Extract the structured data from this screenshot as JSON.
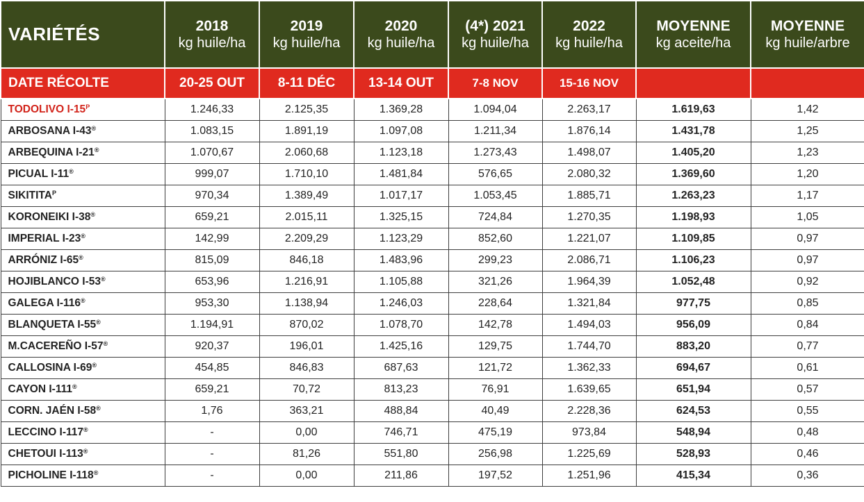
{
  "header": {
    "varietes_label": "VARIÉTÉS",
    "columns": [
      {
        "year": "2018",
        "unit": "kg huile/ha"
      },
      {
        "year": "2019",
        "unit": "kg huile/ha"
      },
      {
        "year": "2020",
        "unit": "kg huile/ha"
      },
      {
        "year": "(4*) 2021",
        "unit": "kg huile/ha"
      },
      {
        "year": "2022",
        "unit": "kg huile/ha"
      },
      {
        "year": "MOYENNE",
        "unit": "kg aceite/ha"
      },
      {
        "year": "MOYENNE",
        "unit": "kg huile/arbre"
      }
    ]
  },
  "harvest": {
    "label": "DATE RÉCOLTE",
    "dates": [
      "20-25 OUT",
      "8-11 DÉC",
      "13-14  OUT",
      "7-8 NOV",
      "15-16 NOV",
      "",
      ""
    ]
  },
  "colors": {
    "header_bg": "#3b4a1c",
    "date_row_bg": "#e02a1f",
    "highlight_text": "#d2241b"
  },
  "rows": [
    {
      "name": "TODOLIVO I-15",
      "mark": "P",
      "values": [
        "1.246,33",
        "2.125,35",
        "1.369,28",
        "1.094,04",
        "2.263,17",
        "1.619,63",
        "1,42"
      ]
    },
    {
      "name": "ARBOSANA I-43",
      "mark": "®",
      "values": [
        "1.083,15",
        "1.891,19",
        "1.097,08",
        "1.211,34",
        "1.876,14",
        "1.431,78",
        "1,25"
      ]
    },
    {
      "name": "ARBEQUINA I-21",
      "mark": "®",
      "values": [
        "1.070,67",
        "2.060,68",
        "1.123,18",
        "1.273,43",
        "1.498,07",
        "1.405,20",
        "1,23"
      ]
    },
    {
      "name": "PICUAL I-11",
      "mark": "®",
      "values": [
        "999,07",
        "1.710,10",
        "1.481,84",
        "576,65",
        "2.080,32",
        "1.369,60",
        "1,20"
      ]
    },
    {
      "name": "SIKITITA",
      "mark": "P",
      "values": [
        "970,34",
        "1.389,49",
        "1.017,17",
        "1.053,45",
        "1.885,71",
        "1.263,23",
        "1,17"
      ]
    },
    {
      "name": "KORONEIKI I-38",
      "mark": "®",
      "values": [
        "659,21",
        "2.015,11",
        "1.325,15",
        "724,84",
        "1.270,35",
        "1.198,93",
        "1,05"
      ]
    },
    {
      "name": "IMPERIAL I-23",
      "mark": "®",
      "values": [
        "142,99",
        "2.209,29",
        "1.123,29",
        "852,60",
        "1.221,07",
        "1.109,85",
        "0,97"
      ]
    },
    {
      "name": "ARRÓNIZ I-65",
      "mark": "®",
      "values": [
        "815,09",
        "846,18",
        "1.483,96",
        "299,23",
        "2.086,71",
        "1.106,23",
        "0,97"
      ]
    },
    {
      "name": "HOJIBLANCO I-53",
      "mark": "®",
      "values": [
        "653,96",
        "1.216,91",
        "1.105,88",
        "321,26",
        "1.964,39",
        "1.052,48",
        "0,92"
      ]
    },
    {
      "name": "GALEGA I-116",
      "mark": "®",
      "values": [
        "953,30",
        "1.138,94",
        "1.246,03",
        "228,64",
        "1.321,84",
        "977,75",
        "0,85"
      ]
    },
    {
      "name": "BLANQUETA I-55",
      "mark": "®",
      "values": [
        "1.194,91",
        "870,02",
        "1.078,70",
        "142,78",
        "1.494,03",
        "956,09",
        "0,84"
      ]
    },
    {
      "name": "M.CACEREÑO I-57",
      "mark": "®",
      "values": [
        "920,37",
        "196,01",
        "1.425,16",
        "129,75",
        "1.744,70",
        "883,20",
        "0,77"
      ]
    },
    {
      "name": "CALLOSINA I-69",
      "mark": "®",
      "values": [
        "454,85",
        "846,83",
        "687,63",
        "121,72",
        "1.362,33",
        "694,67",
        "0,61"
      ]
    },
    {
      "name": "CAYON I-111",
      "mark": "®",
      "values": [
        "659,21",
        "70,72",
        "813,23",
        "76,91",
        "1.639,65",
        "651,94",
        "0,57"
      ]
    },
    {
      "name": "CORN. JAÉN I-58",
      "mark": "®",
      "values": [
        "1,76",
        "363,21",
        "488,84",
        "40,49",
        "2.228,36",
        "624,53",
        "0,55"
      ]
    },
    {
      "name": "LECCINO I-117",
      "mark": "®",
      "values": [
        "-",
        "0,00",
        "746,71",
        "475,19",
        "973,84",
        "548,94",
        "0,48"
      ]
    },
    {
      "name": "CHETOUI I-113",
      "mark": "®",
      "values": [
        "-",
        "81,26",
        "551,80",
        "256,98",
        "1.225,69",
        "528,93",
        "0,46"
      ]
    },
    {
      "name": "PICHOLINE I-118",
      "mark": "®",
      "values": [
        "-",
        "0,00",
        "211,86",
        "197,52",
        "1.251,96",
        "415,34",
        "0,36"
      ]
    }
  ]
}
